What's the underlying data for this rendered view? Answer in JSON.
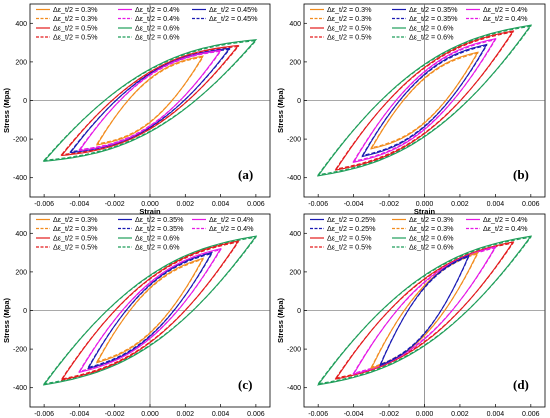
{
  "chart_data": [
    {
      "type": "line",
      "panel_label": "(a)",
      "xlabel": "Strain",
      "ylabel": "Stress (Mpa)",
      "xlim": [
        -0.0068,
        0.0068
      ],
      "ylim": [
        -500,
        500
      ],
      "xticks": [
        -0.006,
        -0.004,
        -0.002,
        0.0,
        0.002,
        0.004,
        0.006
      ],
      "xtick_labels": [
        "-0.006",
        "-0.004",
        "-0.002",
        "0.000",
        "0.002",
        "0.004",
        "0.006"
      ],
      "yticks": [
        -400,
        -200,
        0,
        200,
        400
      ],
      "ytick_labels": [
        "-400",
        "-200",
        "0",
        "200",
        "400"
      ],
      "grid": false,
      "legend_position": "top",
      "series": [
        {
          "name": "Δε_t/2 = 0.3%",
          "color": "#F28C1E",
          "dashed": false,
          "amplitude": 0.003,
          "peak_stress": 230,
          "yield_stress": 120
        },
        {
          "name": "Δε_t/2 = 0.3%",
          "color": "#F28C1E",
          "dashed": true,
          "amplitude": 0.003,
          "peak_stress": 225,
          "yield_stress": 115
        },
        {
          "name": "Δε_t/2 = 0.4%",
          "color": "#E619E6",
          "dashed": false,
          "amplitude": 0.004,
          "peak_stress": 260,
          "yield_stress": 150
        },
        {
          "name": "Δε_t/2 = 0.4%",
          "color": "#E619E6",
          "dashed": true,
          "amplitude": 0.004,
          "peak_stress": 255,
          "yield_stress": 145
        },
        {
          "name": "Δε_t/2 = 0.45%",
          "color": "#1A1AB3",
          "dashed": false,
          "amplitude": 0.0045,
          "peak_stress": 270,
          "yield_stress": 160
        },
        {
          "name": "Δε_t/2 = 0.45%",
          "color": "#1A1AB3",
          "dashed": true,
          "amplitude": 0.0045,
          "peak_stress": 265,
          "yield_stress": 155
        },
        {
          "name": "Δε_t/2 = 0.5%",
          "color": "#E31A1C",
          "dashed": false,
          "amplitude": 0.005,
          "peak_stress": 285,
          "yield_stress": 170
        },
        {
          "name": "Δε_t/2 = 0.5%",
          "color": "#E31A1C",
          "dashed": true,
          "amplitude": 0.005,
          "peak_stress": 280,
          "yield_stress": 165
        },
        {
          "name": "Δε_t/2 = 0.6%",
          "color": "#1F9E5A",
          "dashed": false,
          "amplitude": 0.006,
          "peak_stress": 315,
          "yield_stress": 185
        },
        {
          "name": "Δε_t/2 = 0.6%",
          "color": "#1F9E5A",
          "dashed": true,
          "amplitude": 0.006,
          "peak_stress": 310,
          "yield_stress": 180
        }
      ]
    },
    {
      "type": "line",
      "panel_label": "(b)",
      "xlabel": "Strain",
      "ylabel": "Stress (Mpa)",
      "xlim": [
        -0.0068,
        0.0068
      ],
      "ylim": [
        -500,
        500
      ],
      "xticks": [
        -0.006,
        -0.004,
        -0.002,
        0.0,
        0.002,
        0.004,
        0.006
      ],
      "xtick_labels": [
        "-0.006",
        "-0.004",
        "-0.002",
        "0.000",
        "0.002",
        "0.004",
        "0.006"
      ],
      "yticks": [
        -400,
        -200,
        0,
        200,
        400
      ],
      "ytick_labels": [
        "-400",
        "-200",
        "0",
        "200",
        "400"
      ],
      "grid": false,
      "legend_position": "top",
      "series": [
        {
          "name": "Δε_t/2 = 0.3%",
          "color": "#F28C1E",
          "dashed": false,
          "amplitude": 0.003,
          "peak_stress": 250,
          "yield_stress": 110
        },
        {
          "name": "Δε_t/2 = 0.3%",
          "color": "#F28C1E",
          "dashed": true,
          "amplitude": 0.003,
          "peak_stress": 245,
          "yield_stress": 105
        },
        {
          "name": "Δε_t/2 = 0.35%",
          "color": "#1A1AB3",
          "dashed": false,
          "amplitude": 0.0035,
          "peak_stress": 290,
          "yield_stress": 130
        },
        {
          "name": "Δε_t/2 = 0.35%",
          "color": "#1A1AB3",
          "dashed": true,
          "amplitude": 0.0035,
          "peak_stress": 285,
          "yield_stress": 125
        },
        {
          "name": "Δε_t/2 = 0.4%",
          "color": "#E619E6",
          "dashed": false,
          "amplitude": 0.004,
          "peak_stress": 320,
          "yield_stress": 145
        },
        {
          "name": "Δε_t/2 = 0.4%",
          "color": "#E619E6",
          "dashed": true,
          "amplitude": 0.004,
          "peak_stress": 315,
          "yield_stress": 140
        },
        {
          "name": "Δε_t/2 = 0.5%",
          "color": "#E31A1C",
          "dashed": false,
          "amplitude": 0.005,
          "peak_stress": 360,
          "yield_stress": 170
        },
        {
          "name": "Δε_t/2 = 0.5%",
          "color": "#E31A1C",
          "dashed": true,
          "amplitude": 0.005,
          "peak_stress": 355,
          "yield_stress": 165
        },
        {
          "name": "Δε_t/2 = 0.6%",
          "color": "#1F9E5A",
          "dashed": false,
          "amplitude": 0.006,
          "peak_stress": 390,
          "yield_stress": 190
        },
        {
          "name": "Δε_t/2 = 0.6%",
          "color": "#1F9E5A",
          "dashed": true,
          "amplitude": 0.006,
          "peak_stress": 385,
          "yield_stress": 185
        }
      ]
    },
    {
      "type": "line",
      "panel_label": "(c)",
      "xlabel": "Strain",
      "ylabel": "Stress (Mpa)",
      "xlim": [
        -0.0068,
        0.0068
      ],
      "ylim": [
        -500,
        500
      ],
      "xticks": [
        -0.006,
        -0.004,
        -0.002,
        0.0,
        0.002,
        0.004,
        0.006
      ],
      "xtick_labels": [
        "-0.006",
        "-0.004",
        "-0.002",
        "0.000",
        "0.002",
        "0.004",
        "0.006"
      ],
      "yticks": [
        -400,
        -200,
        0,
        200,
        400
      ],
      "ytick_labels": [
        "-400",
        "-200",
        "0",
        "200",
        "400"
      ],
      "grid": false,
      "legend_position": "top",
      "series": [
        {
          "name": "Δε_t/2 = 0.3%",
          "color": "#F28C1E",
          "dashed": false,
          "amplitude": 0.003,
          "peak_stress": 270,
          "yield_stress": 95
        },
        {
          "name": "Δε_t/2 = 0.3%",
          "color": "#F28C1E",
          "dashed": true,
          "amplitude": 0.003,
          "peak_stress": 265,
          "yield_stress": 90
        },
        {
          "name": "Δε_t/2 = 0.35%",
          "color": "#1A1AB3",
          "dashed": false,
          "amplitude": 0.0035,
          "peak_stress": 300,
          "yield_stress": 115
        },
        {
          "name": "Δε_t/2 = 0.35%",
          "color": "#1A1AB3",
          "dashed": true,
          "amplitude": 0.0035,
          "peak_stress": 295,
          "yield_stress": 110
        },
        {
          "name": "Δε_t/2 = 0.4%",
          "color": "#E619E6",
          "dashed": false,
          "amplitude": 0.004,
          "peak_stress": 320,
          "yield_stress": 130
        },
        {
          "name": "Δε_t/2 = 0.4%",
          "color": "#E619E6",
          "dashed": true,
          "amplitude": 0.004,
          "peak_stress": 315,
          "yield_stress": 125
        },
        {
          "name": "Δε_t/2 = 0.5%",
          "color": "#E31A1C",
          "dashed": false,
          "amplitude": 0.005,
          "peak_stress": 360,
          "yield_stress": 155
        },
        {
          "name": "Δε_t/2 = 0.5%",
          "color": "#E31A1C",
          "dashed": true,
          "amplitude": 0.005,
          "peak_stress": 355,
          "yield_stress": 150
        },
        {
          "name": "Δε_t/2 = 0.6%",
          "color": "#1F9E5A",
          "dashed": false,
          "amplitude": 0.006,
          "peak_stress": 385,
          "yield_stress": 180
        },
        {
          "name": "Δε_t/2 = 0.6%",
          "color": "#1F9E5A",
          "dashed": true,
          "amplitude": 0.006,
          "peak_stress": 380,
          "yield_stress": 175
        }
      ]
    },
    {
      "type": "line",
      "panel_label": "(d)",
      "xlabel": "Strain",
      "ylabel": "Stress (Mpa)",
      "xlim": [
        -0.0068,
        0.0068
      ],
      "ylim": [
        -500,
        500
      ],
      "xticks": [
        -0.006,
        -0.004,
        -0.002,
        0.0,
        0.002,
        0.004,
        0.006
      ],
      "xtick_labels": [
        "-0.006",
        "-0.004",
        "-0.002",
        "0.000",
        "0.002",
        "0.004",
        "0.006"
      ],
      "yticks": [
        -400,
        -200,
        0,
        200,
        400
      ],
      "ytick_labels": [
        "-400",
        "-200",
        "0",
        "200",
        "400"
      ],
      "grid": false,
      "legend_position": "top",
      "series": [
        {
          "name": "Δε_t/2 = 0.25%",
          "color": "#1A1AB3",
          "dashed": false,
          "amplitude": 0.0025,
          "peak_stress": 285,
          "yield_stress": 90
        },
        {
          "name": "Δε_t/2 = 0.25%",
          "color": "#1A1AB3",
          "dashed": true,
          "amplitude": 0.0025,
          "peak_stress": 280,
          "yield_stress": 85
        },
        {
          "name": "Δε_t/2 = 0.3%",
          "color": "#F28C1E",
          "dashed": false,
          "amplitude": 0.003,
          "peak_stress": 300,
          "yield_stress": 105
        },
        {
          "name": "Δε_t/2 = 0.3%",
          "color": "#F28C1E",
          "dashed": true,
          "amplitude": 0.003,
          "peak_stress": 295,
          "yield_stress": 100
        },
        {
          "name": "Δε_t/2 = 0.4%",
          "color": "#E619E6",
          "dashed": false,
          "amplitude": 0.004,
          "peak_stress": 330,
          "yield_stress": 130
        },
        {
          "name": "Δε_t/2 = 0.4%",
          "color": "#E619E6",
          "dashed": true,
          "amplitude": 0.004,
          "peak_stress": 325,
          "yield_stress": 125
        },
        {
          "name": "Δε_t/2 = 0.5%",
          "color": "#E31A1C",
          "dashed": false,
          "amplitude": 0.005,
          "peak_stress": 355,
          "yield_stress": 155
        },
        {
          "name": "Δε_t/2 = 0.5%",
          "color": "#E31A1C",
          "dashed": true,
          "amplitude": 0.005,
          "peak_stress": 350,
          "yield_stress": 150
        },
        {
          "name": "Δε_t/2 = 0.6%",
          "color": "#1F9E5A",
          "dashed": false,
          "amplitude": 0.006,
          "peak_stress": 385,
          "yield_stress": 180
        },
        {
          "name": "Δε_t/2 = 0.6%",
          "color": "#1F9E5A",
          "dashed": true,
          "amplitude": 0.006,
          "peak_stress": 380,
          "yield_stress": 175
        }
      ]
    }
  ]
}
